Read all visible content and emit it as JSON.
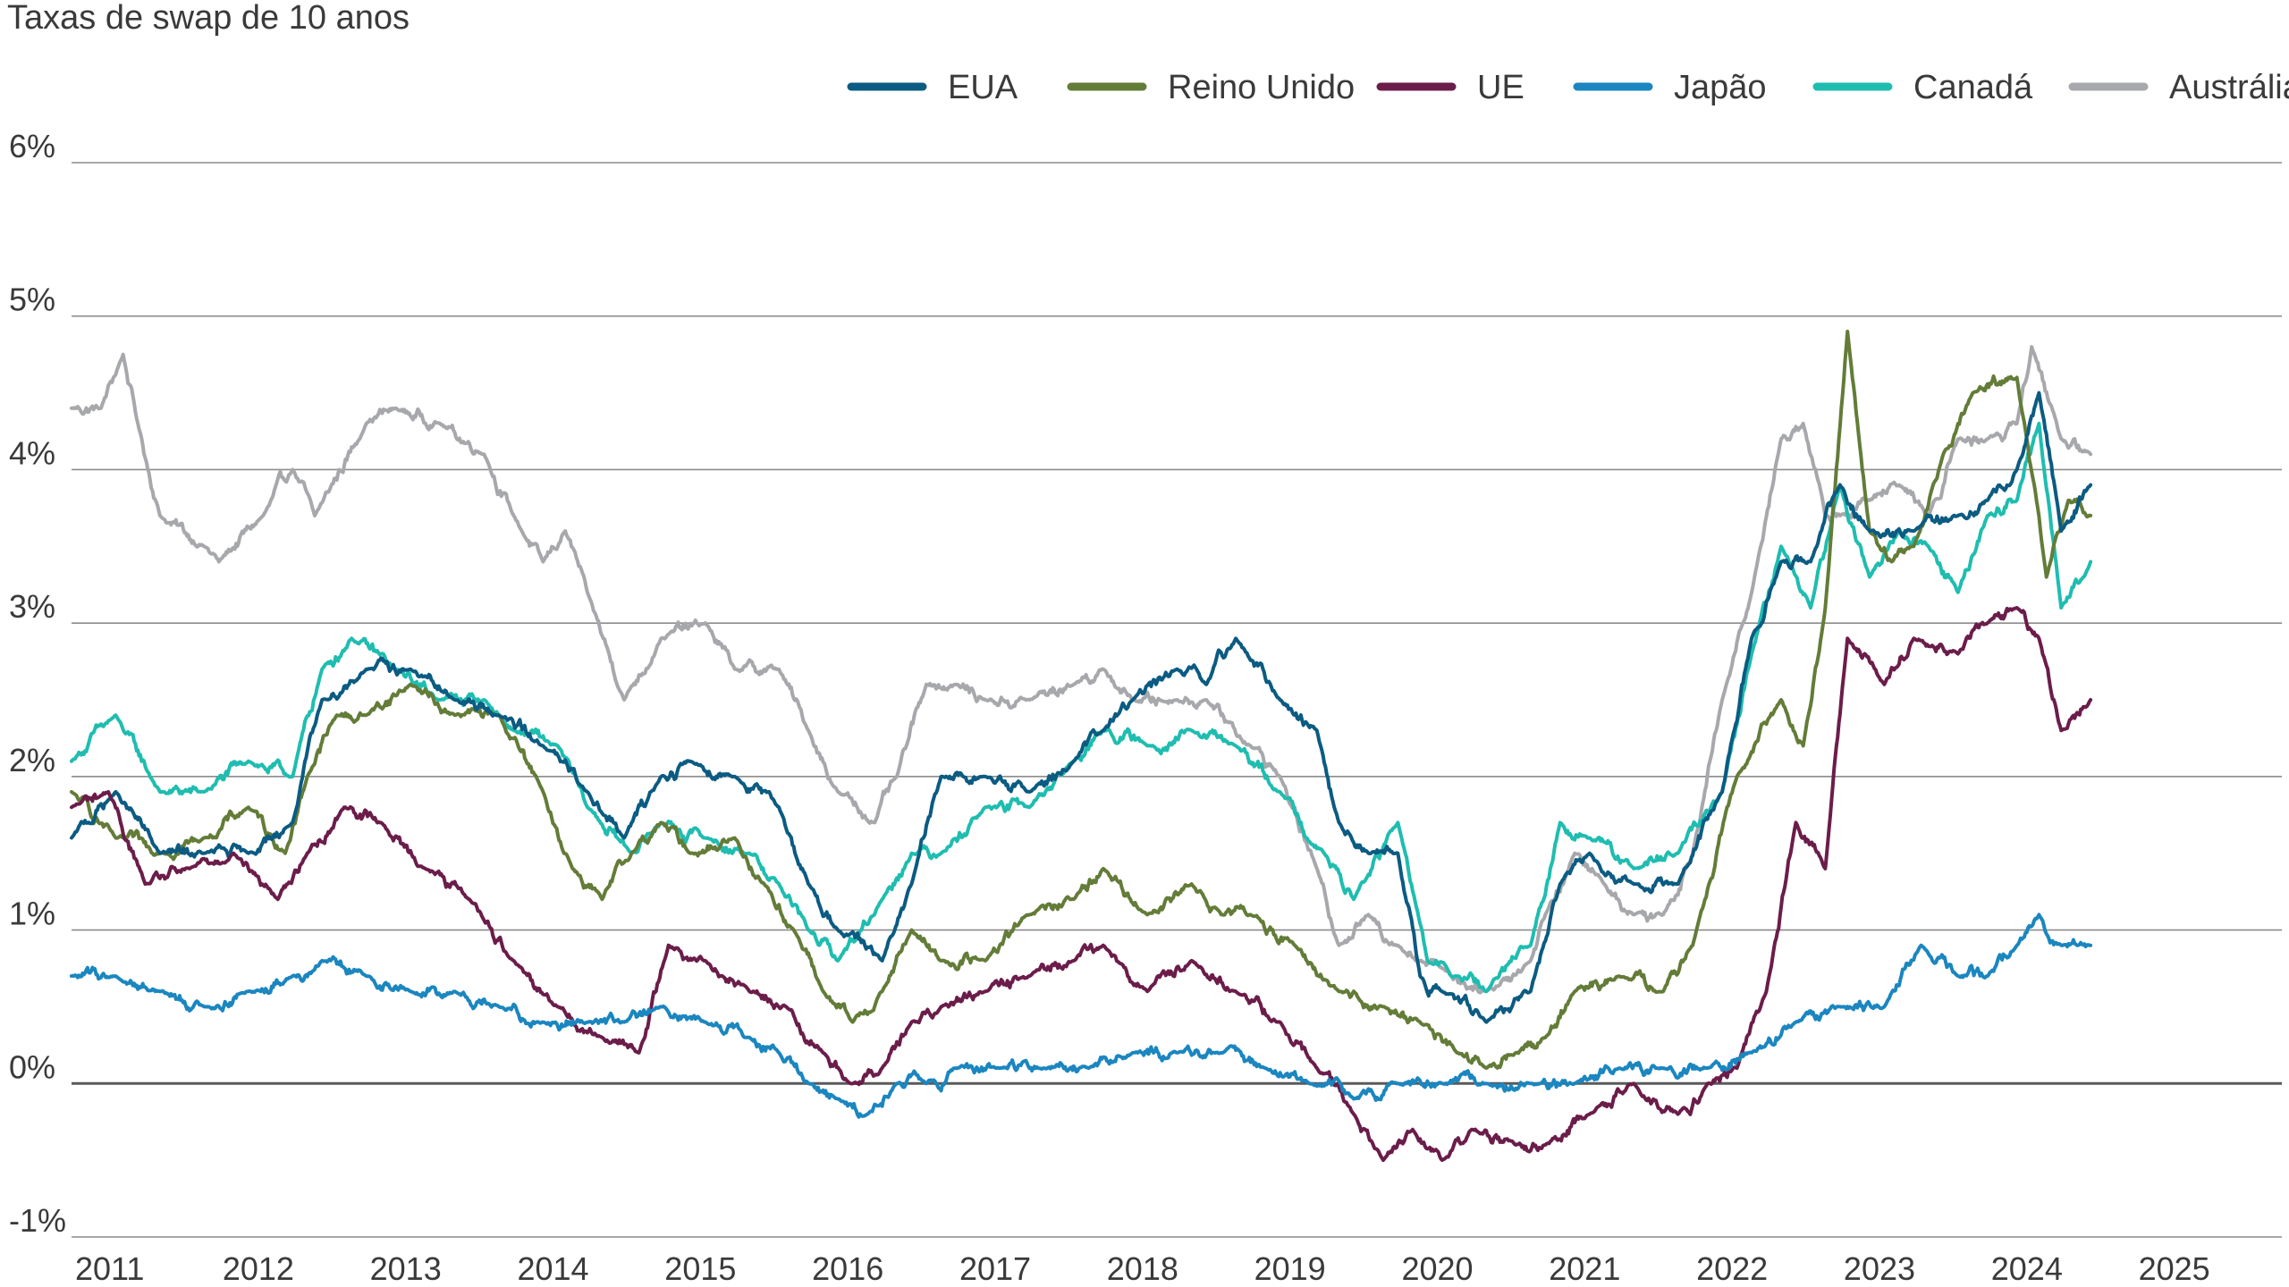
{
  "chart_data": {
    "type": "line",
    "title": "Taxas de swap de 10 anos",
    "xlabel": "",
    "ylabel": "",
    "xlim": [
      2011,
      2025.5
    ],
    "ylim": [
      -1,
      6
    ],
    "grid": true,
    "legend_position": "top",
    "y_ticks": [
      -1,
      0,
      1,
      2,
      3,
      4,
      5,
      6
    ],
    "y_tick_labels": [
      "-1%",
      "0%",
      "1%",
      "2%",
      "3%",
      "4%",
      "5%",
      "6%"
    ],
    "x_ticks": [
      2011,
      2012,
      2013,
      2014,
      2015,
      2016,
      2017,
      2018,
      2019,
      2020,
      2021,
      2022,
      2023,
      2024,
      2025
    ],
    "x_tick_labels": [
      "2011",
      "2012",
      "2013",
      "2014",
      "2015",
      "2016",
      "2017",
      "2018",
      "2019",
      "2020",
      "2021",
      "2022",
      "2023",
      "2024",
      "2025"
    ],
    "series": [
      {
        "name": "Austrália",
        "color": "#a7a8ac",
        "x": [
          2011.0,
          2011.2,
          2011.35,
          2011.45,
          2011.6,
          2011.9,
          2012.0,
          2012.3,
          2012.5,
          2012.65,
          2013.0,
          2013.2,
          2013.5,
          2013.8,
          2014.0,
          2014.2,
          2014.35,
          2014.5,
          2014.75,
          2015.0,
          2015.3,
          2015.5,
          2015.8,
          2016.0,
          2016.2,
          2016.45,
          2016.6,
          2016.8,
          2017.0,
          2017.2,
          2017.5,
          2017.8,
          2018.0,
          2018.2,
          2018.5,
          2018.7,
          2019.0,
          2019.2,
          2019.45,
          2019.6,
          2019.8,
          2020.0,
          2020.15,
          2020.3,
          2020.6,
          2020.9,
          2021.0,
          2021.2,
          2021.4,
          2021.6,
          2021.8,
          2022.0,
          2022.2,
          2022.4,
          2022.6,
          2022.75,
          2022.9,
          2023.0,
          2023.2,
          2023.4,
          2023.6,
          2023.8,
          2024.0,
          2024.2,
          2024.3,
          2024.5,
          2024.7
        ],
        "y": [
          4.4,
          4.4,
          4.75,
          4.3,
          3.7,
          3.5,
          3.4,
          3.7,
          4.0,
          3.7,
          4.3,
          4.4,
          4.3,
          4.1,
          3.7,
          3.4,
          3.6,
          3.2,
          2.5,
          2.9,
          3.0,
          2.7,
          2.7,
          2.3,
          1.9,
          1.7,
          2.0,
          2.6,
          2.6,
          2.5,
          2.5,
          2.6,
          2.7,
          2.5,
          2.5,
          2.5,
          2.2,
          2.0,
          1.4,
          0.9,
          1.1,
          0.9,
          0.8,
          0.75,
          0.6,
          0.8,
          1.1,
          1.5,
          1.3,
          1.1,
          1.1,
          1.5,
          2.5,
          3.2,
          4.2,
          4.3,
          3.7,
          3.7,
          3.8,
          3.9,
          3.7,
          4.2,
          4.2,
          4.3,
          4.8,
          4.2,
          4.1
        ]
      },
      {
        "name": "Canadá",
        "color": "#1fbdb0",
        "x": [
          2011.0,
          2011.3,
          2011.6,
          2011.9,
          2012.2,
          2012.5,
          2012.7,
          2012.9,
          2013.2,
          2013.5,
          2013.8,
          2014.0,
          2014.3,
          2014.5,
          2014.8,
          2015.0,
          2015.3,
          2015.6,
          2015.8,
          2016.0,
          2016.2,
          2016.5,
          2016.7,
          2016.9,
          2017.2,
          2017.5,
          2017.8,
          2018.0,
          2018.3,
          2018.6,
          2018.9,
          2019.2,
          2019.5,
          2019.7,
          2020.0,
          2020.2,
          2020.4,
          2020.6,
          2020.9,
          2021.1,
          2021.3,
          2021.6,
          2021.9,
          2022.2,
          2022.4,
          2022.6,
          2022.8,
          2023.0,
          2023.2,
          2023.4,
          2023.6,
          2023.8,
          2024.0,
          2024.2,
          2024.35,
          2024.5,
          2024.7
        ],
        "y": [
          2.1,
          2.4,
          1.9,
          1.9,
          2.1,
          2.0,
          2.7,
          2.9,
          2.7,
          2.5,
          2.5,
          2.3,
          2.2,
          1.8,
          1.5,
          1.7,
          1.6,
          1.5,
          1.3,
          1.0,
          0.8,
          1.2,
          1.5,
          1.5,
          1.8,
          1.8,
          2.1,
          2.3,
          2.2,
          2.3,
          2.2,
          1.9,
          1.5,
          1.2,
          1.7,
          0.8,
          0.7,
          0.6,
          0.9,
          1.7,
          1.6,
          1.4,
          1.5,
          1.9,
          2.8,
          3.5,
          3.1,
          3.9,
          3.3,
          3.6,
          3.5,
          3.2,
          3.7,
          3.8,
          4.3,
          3.1,
          3.4
        ]
      },
      {
        "name": "Reino Unido",
        "color": "#637c38",
        "x": [
          2011.0,
          2011.3,
          2011.6,
          2011.9,
          2012.2,
          2012.45,
          2012.6,
          2012.8,
          2013.0,
          2013.3,
          2013.6,
          2013.9,
          2014.2,
          2014.4,
          2014.6,
          2014.8,
          2015.0,
          2015.2,
          2015.5,
          2015.7,
          2015.9,
          2016.1,
          2016.3,
          2016.5,
          2016.7,
          2016.9,
          2017.2,
          2017.5,
          2017.8,
          2018.0,
          2018.3,
          2018.6,
          2018.8,
          2019.0,
          2019.3,
          2019.6,
          2019.9,
          2020.15,
          2020.4,
          2020.6,
          2020.8,
          2021.0,
          2021.2,
          2021.5,
          2021.8,
          2022.0,
          2022.3,
          2022.6,
          2022.75,
          2022.9,
          2023.05,
          2023.2,
          2023.35,
          2023.5,
          2023.7,
          2023.9,
          2024.2,
          2024.4,
          2024.55,
          2024.7
        ],
        "y": [
          1.9,
          1.6,
          1.5,
          1.6,
          1.8,
          1.5,
          2.0,
          2.4,
          2.4,
          2.6,
          2.4,
          2.4,
          1.9,
          1.4,
          1.2,
          1.5,
          1.7,
          1.5,
          1.6,
          1.3,
          1.0,
          0.6,
          0.4,
          0.6,
          1.0,
          0.8,
          0.8,
          1.1,
          1.2,
          1.4,
          1.1,
          1.3,
          1.1,
          1.1,
          0.9,
          0.6,
          0.5,
          0.4,
          0.2,
          0.1,
          0.2,
          0.3,
          0.6,
          0.7,
          0.6,
          0.9,
          2.0,
          2.5,
          2.2,
          3.1,
          4.9,
          3.6,
          3.4,
          3.5,
          4.1,
          4.5,
          4.6,
          3.3,
          3.8,
          3.7
        ]
      },
      {
        "name": "EUA",
        "color": "#0b5b82",
        "x": [
          2011.0,
          2011.3,
          2011.6,
          2011.9,
          2012.2,
          2012.5,
          2012.7,
          2013.0,
          2013.3,
          2013.6,
          2013.9,
          2014.2,
          2014.5,
          2014.75,
          2015.0,
          2015.2,
          2015.5,
          2015.8,
          2016.0,
          2016.2,
          2016.5,
          2016.7,
          2016.9,
          2017.2,
          2017.5,
          2017.8,
          2018.0,
          2018.2,
          2018.5,
          2018.7,
          2018.9,
          2019.2,
          2019.45,
          2019.6,
          2019.8,
          2020.0,
          2020.15,
          2020.3,
          2020.6,
          2020.9,
          2021.1,
          2021.3,
          2021.6,
          2021.9,
          2022.2,
          2022.4,
          2022.6,
          2022.8,
          2023.0,
          2023.2,
          2023.5,
          2023.8,
          2024.0,
          2024.2,
          2024.35,
          2024.5,
          2024.7
        ],
        "y": [
          1.6,
          1.9,
          1.5,
          1.5,
          1.5,
          1.7,
          2.5,
          2.7,
          2.7,
          2.5,
          2.4,
          2.2,
          1.9,
          1.6,
          2.0,
          2.1,
          2.0,
          1.8,
          1.3,
          1.0,
          0.8,
          1.3,
          2.0,
          2.0,
          1.9,
          2.1,
          2.3,
          2.5,
          2.7,
          2.6,
          2.9,
          2.5,
          2.3,
          1.7,
          1.5,
          1.5,
          0.7,
          0.6,
          0.4,
          0.6,
          1.3,
          1.5,
          1.3,
          1.3,
          1.9,
          2.9,
          3.4,
          3.4,
          3.9,
          3.6,
          3.6,
          3.7,
          3.8,
          4.0,
          4.5,
          3.6,
          3.9
        ]
      },
      {
        "name": "UE",
        "color": "#6b1d4a",
        "x": [
          2011.0,
          2011.25,
          2011.5,
          2011.8,
          2012.1,
          2012.4,
          2012.6,
          2012.85,
          2013.1,
          2013.4,
          2013.7,
          2014.0,
          2014.3,
          2014.6,
          2014.85,
          2015.05,
          2015.3,
          2015.6,
          2015.85,
          2016.1,
          2016.3,
          2016.5,
          2016.7,
          2016.9,
          2017.2,
          2017.5,
          2017.8,
          2018.0,
          2018.3,
          2018.6,
          2018.9,
          2019.2,
          2019.45,
          2019.7,
          2019.9,
          2020.1,
          2020.3,
          2020.5,
          2020.8,
          2021.0,
          2021.3,
          2021.6,
          2021.9,
          2022.1,
          2022.3,
          2022.5,
          2022.7,
          2022.9,
          2023.05,
          2023.3,
          2023.5,
          2023.8,
          2024.0,
          2024.2,
          2024.35,
          2024.5,
          2024.7
        ],
        "y": [
          1.8,
          1.9,
          1.3,
          1.4,
          1.5,
          1.2,
          1.5,
          1.8,
          1.7,
          1.4,
          1.2,
          0.8,
          0.5,
          0.3,
          0.2,
          0.9,
          0.8,
          0.6,
          0.5,
          0.2,
          0.0,
          0.1,
          0.4,
          0.5,
          0.6,
          0.7,
          0.8,
          0.9,
          0.6,
          0.8,
          0.6,
          0.4,
          0.1,
          -0.2,
          -0.5,
          -0.3,
          -0.5,
          -0.3,
          -0.4,
          -0.4,
          -0.2,
          0.0,
          -0.2,
          0.0,
          0.1,
          0.6,
          1.7,
          1.4,
          2.9,
          2.6,
          2.9,
          2.8,
          3.0,
          3.1,
          2.9,
          2.3,
          2.5
        ]
      },
      {
        "name": "Japão",
        "color": "#1b86bf",
        "x": [
          2011.0,
          2011.3,
          2011.6,
          2011.9,
          2012.2,
          2012.5,
          2012.7,
          2013.0,
          2013.3,
          2013.6,
          2013.9,
          2014.2,
          2014.5,
          2014.75,
          2015.0,
          2015.3,
          2015.6,
          2015.8,
          2016.0,
          2016.2,
          2016.4,
          2016.6,
          2016.8,
          2017.0,
          2017.3,
          2017.6,
          2017.9,
          2018.2,
          2018.5,
          2018.8,
          2019.1,
          2019.4,
          2019.7,
          2020.0,
          2020.3,
          2020.6,
          2020.9,
          2021.2,
          2021.5,
          2021.8,
          2022.1,
          2022.4,
          2022.7,
          2023.0,
          2023.3,
          2023.55,
          2023.8,
          2024.0,
          2024.2,
          2024.35,
          2024.5,
          2024.7
        ],
        "y": [
          0.7,
          0.7,
          0.6,
          0.5,
          0.6,
          0.7,
          0.8,
          0.7,
          0.6,
          0.6,
          0.5,
          0.4,
          0.4,
          0.4,
          0.5,
          0.4,
          0.3,
          0.2,
          0.0,
          -0.1,
          -0.2,
          0.0,
          0.0,
          0.1,
          0.1,
          0.1,
          0.1,
          0.2,
          0.2,
          0.2,
          0.1,
          0.0,
          -0.1,
          0.0,
          0.0,
          0.0,
          0.0,
          0.0,
          0.1,
          0.1,
          0.1,
          0.2,
          0.4,
          0.5,
          0.5,
          0.9,
          0.7,
          0.7,
          0.9,
          1.1,
          0.9,
          0.9
        ]
      }
    ],
    "legend_order": [
      "EUA",
      "Reino Unido",
      "UE",
      "Japão",
      "Canadá",
      "Austrália"
    ]
  }
}
